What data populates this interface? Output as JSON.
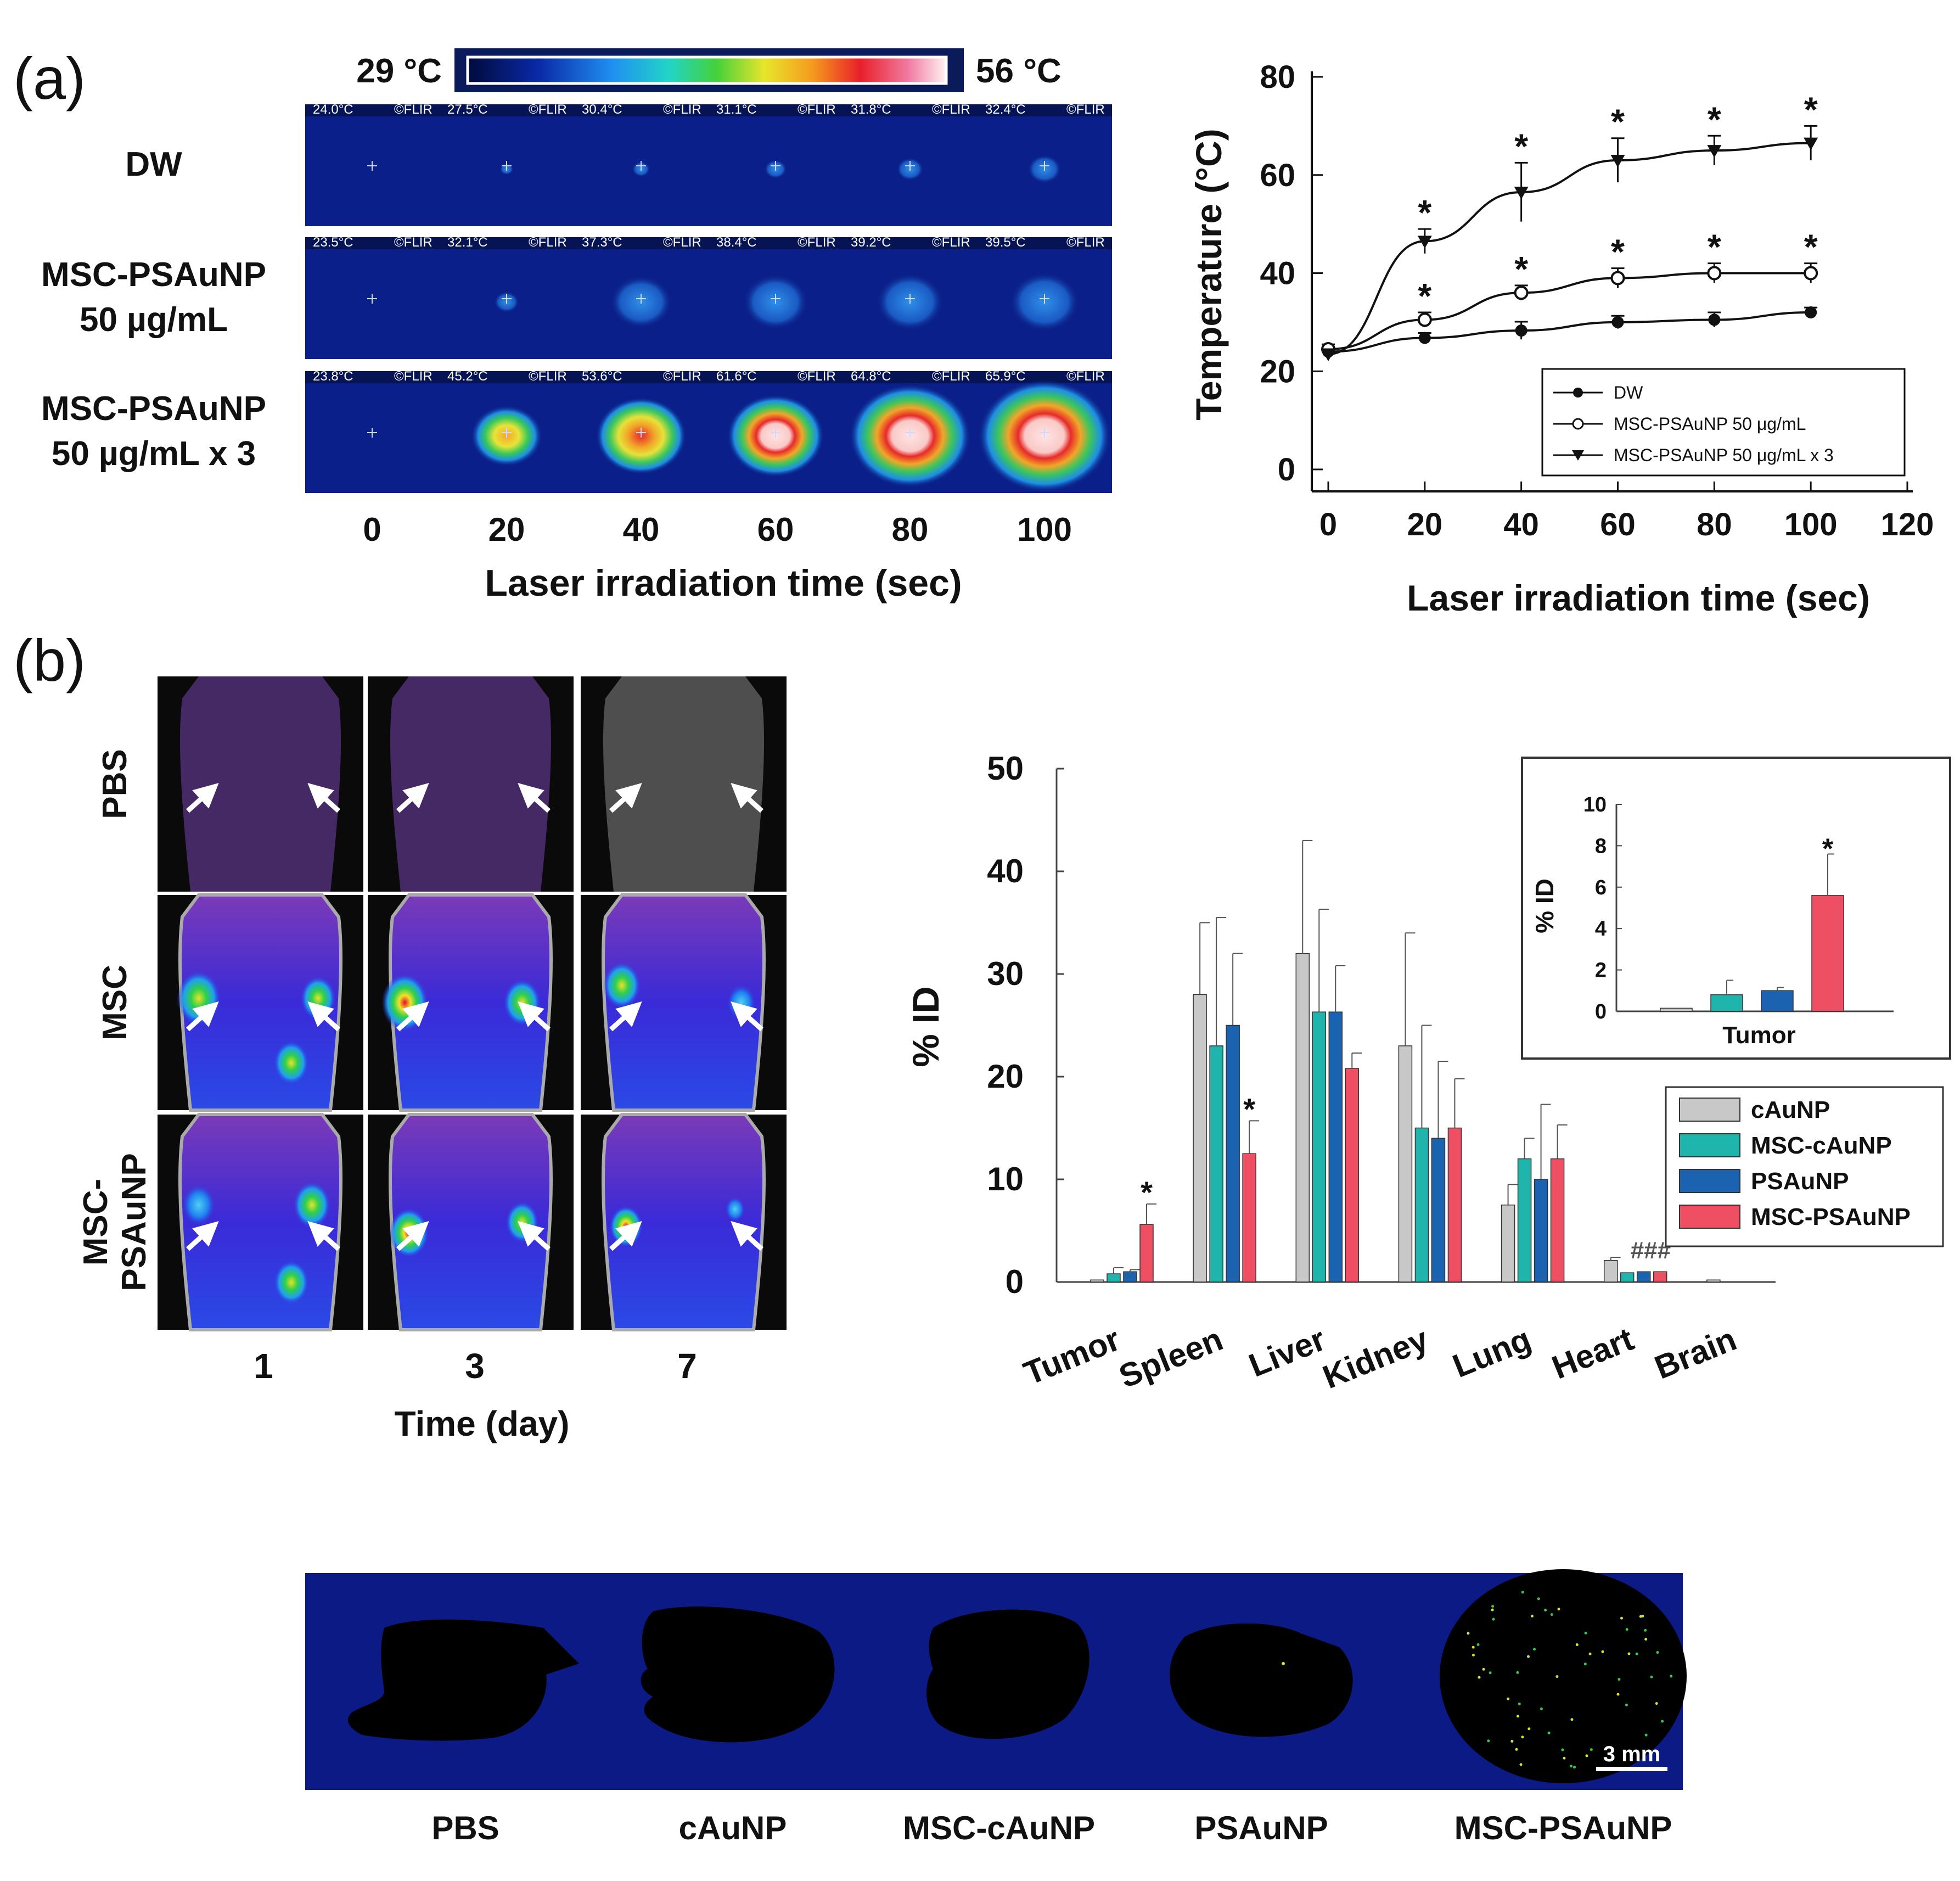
{
  "panel_labels": [
    "(a)",
    "(b)"
  ],
  "colorbar": {
    "min_label": "29 °C",
    "max_label": "56 °C"
  },
  "thermal": {
    "rows": [
      {
        "label_lines": [
          "DW"
        ],
        "readings": [
          "24.0°C",
          "27.5°C",
          "30.4°C",
          "31.1°C",
          "31.8°C",
          "32.4°C"
        ]
      },
      {
        "label_lines": [
          "MSC-PSAuNP",
          "50 µg/mL"
        ],
        "readings": [
          "23.5°C",
          "32.1°C",
          "37.3°C",
          "38.4°C",
          "39.2°C",
          "39.5°C"
        ]
      },
      {
        "label_lines": [
          "MSC-PSAuNP",
          "50 µg/mL x 3"
        ],
        "readings": [
          "23.8°C",
          "45.2°C",
          "53.6°C",
          "61.6°C",
          "64.8°C",
          "65.9°C"
        ]
      }
    ],
    "brand": "©FLIR",
    "times": [
      "0",
      "20",
      "40",
      "60",
      "80",
      "100"
    ],
    "xlabel": "Laser irradiation time (sec)"
  },
  "imaging": {
    "row_labels": [
      [
        "PBS"
      ],
      [
        "MSC"
      ],
      [
        "MSC-",
        "PSAuNP"
      ]
    ],
    "days": [
      "1",
      "3",
      "7"
    ],
    "xlabel": "Time (day)"
  },
  "sections": {
    "tiles": [
      "PBS",
      "cAuNP",
      "MSC-cAuNP",
      "PSAuNP",
      "MSC-PSAuNP"
    ],
    "scale_bar": "3 mm"
  },
  "chart_data": [
    {
      "type": "line",
      "xlabel": "Laser irradiation time (sec)",
      "ylabel": "Temperature (°C)",
      "xlim": [
        0,
        120
      ],
      "ylim": [
        0,
        80
      ],
      "xticks": [
        0,
        20,
        40,
        60,
        80,
        100,
        120
      ],
      "yticks": [
        0,
        20,
        40,
        60,
        80
      ],
      "x": [
        0,
        20,
        40,
        60,
        80,
        100
      ],
      "series": [
        {
          "name": "DW",
          "marker": "filled-circle",
          "values": [
            24,
            26.8,
            28.3,
            30,
            30.5,
            32
          ],
          "errors": [
            1.0,
            1.0,
            1.8,
            1.3,
            1.5,
            1.0
          ],
          "stars": []
        },
        {
          "name": "MSC-PSAuNP 50 μg/mL",
          "marker": "open-circle",
          "values": [
            24.5,
            30.5,
            36,
            39,
            40,
            40
          ],
          "errors": [
            1.0,
            1.5,
            1.5,
            2.0,
            2.0,
            2.0
          ],
          "stars": [
            20,
            40,
            60,
            80,
            100
          ]
        },
        {
          "name": "MSC-PSAuNP 50 μg/mL x 3",
          "marker": "filled-triangle",
          "values": [
            23.5,
            46.5,
            56.5,
            63,
            65,
            66.5
          ],
          "errors": [
            1.0,
            2.5,
            6.0,
            4.5,
            3.0,
            3.5
          ],
          "stars": [
            20,
            40,
            60,
            80,
            100
          ]
        }
      ],
      "star_symbol": "*"
    },
    {
      "type": "bar",
      "ylabel": "% ID",
      "ylim": [
        0,
        50
      ],
      "yticks": [
        0,
        10,
        20,
        30,
        40,
        50
      ],
      "categories": [
        "Tumor",
        "Spleen",
        "Liver",
        "Kidney",
        "Lung",
        "Heart",
        "Brain"
      ],
      "series": [
        {
          "name": "cAuNP",
          "color": "#c8c8c8",
          "values": [
            0.2,
            28,
            32,
            23,
            7.5,
            2.1,
            0.2
          ],
          "errors": [
            0,
            7,
            11,
            11,
            2,
            0.3,
            0
          ]
        },
        {
          "name": "MSC-cAuNP",
          "color": "#1fb5ad",
          "values": [
            0.8,
            23,
            26.3,
            15,
            12,
            0.9,
            0
          ],
          "errors": [
            0.6,
            12.5,
            10,
            10,
            2,
            0,
            0
          ]
        },
        {
          "name": "PSAuNP",
          "color": "#1b62b0",
          "values": [
            1.0,
            25,
            26.3,
            14,
            10,
            1.0,
            0
          ],
          "errors": [
            0.2,
            7,
            4.5,
            7.5,
            7.3,
            0,
            0
          ]
        },
        {
          "name": "MSC-PSAuNP",
          "color": "#ef4f63",
          "values": [
            5.6,
            12.5,
            20.8,
            15,
            12,
            1.0,
            0
          ],
          "errors": [
            2,
            3.2,
            1.5,
            4.8,
            3.3,
            0,
            0
          ]
        }
      ],
      "annotations": [
        {
          "category": "Tumor",
          "series": "MSC-PSAuNP",
          "text": "*"
        },
        {
          "category": "Spleen",
          "series": "MSC-PSAuNP",
          "text": "*"
        },
        {
          "category": "Heart",
          "text": "###"
        }
      ],
      "legend": "middle-right"
    },
    {
      "type": "bar",
      "title_inset": true,
      "ylabel": "% ID",
      "xlabel": "Tumor",
      "ylim": [
        0,
        10
      ],
      "yticks": [
        0,
        2,
        4,
        6,
        8,
        10
      ],
      "categories": [
        "cAuNP",
        "MSC-cAuNP",
        "PSAuNP",
        "MSC-PSAuNP"
      ],
      "values": [
        0.15,
        0.8,
        1.0,
        5.6
      ],
      "errors": [
        0,
        0.7,
        0.15,
        2.0
      ],
      "colors": [
        "#c8c8c8",
        "#1fb5ad",
        "#1b62b0",
        "#ef4f63"
      ],
      "annotations": [
        {
          "category": "MSC-PSAuNP",
          "text": "*"
        }
      ]
    }
  ]
}
